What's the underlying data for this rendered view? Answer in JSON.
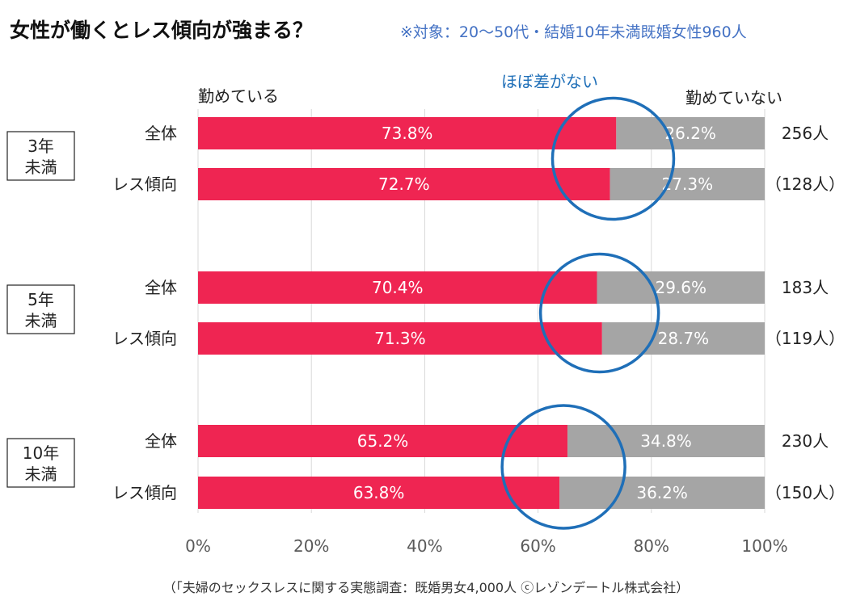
{
  "title": "女性が働くとレス傾向が強まる？",
  "subtitle": "※対象：20～50代・結婚10年未満既婚女性960人",
  "legend": {
    "left": "勤めている",
    "right": "勤めていない"
  },
  "annotation": "ほぼ差がない",
  "source": "（「夫婦のセックスレスに関する実態調査：既婚男女4,000人 ⓒレゾンデートル株式会社）",
  "colors": {
    "working": "#ef2552",
    "not_working": "#a5a5a5",
    "circle": "#1f6fb8",
    "grid": "#d9d9d9"
  },
  "chart_data": {
    "type": "bar",
    "orientation": "horizontal",
    "stacked": true,
    "percent": true,
    "xlim": [
      0,
      100
    ],
    "xticks": [
      "0%",
      "20%",
      "40%",
      "60%",
      "80%",
      "100%"
    ],
    "series": [
      {
        "name": "勤めている",
        "color": "#ef2552"
      },
      {
        "name": "勤めていない",
        "color": "#a5a5a5"
      }
    ],
    "groups": [
      {
        "label": "3年\n未満",
        "rows": [
          {
            "label": "全体",
            "working": 73.8,
            "working_label": "73.8%",
            "not_working": 26.2,
            "not_working_label": "26.2%",
            "count": "256人"
          },
          {
            "label": "レス傾向",
            "working": 72.7,
            "working_label": "72.7%",
            "not_working": 27.3,
            "not_working_label": "27.3%",
            "count": "（128人）"
          }
        ]
      },
      {
        "label": "5年\n未満",
        "rows": [
          {
            "label": "全体",
            "working": 70.4,
            "working_label": "70.4%",
            "not_working": 29.6,
            "not_working_label": "29.6%",
            "count": "183人"
          },
          {
            "label": "レス傾向",
            "working": 71.3,
            "working_label": "71.3%",
            "not_working": 28.7,
            "not_working_label": "28.7%",
            "count": "（119人）"
          }
        ]
      },
      {
        "label": "10年\n未満",
        "rows": [
          {
            "label": "全体",
            "working": 65.2,
            "working_label": "65.2%",
            "not_working": 34.8,
            "not_working_label": "34.8%",
            "count": "230人"
          },
          {
            "label": "レス傾向",
            "working": 63.8,
            "working_label": "63.8%",
            "not_working": 36.2,
            "not_working_label": "36.2%",
            "count": "（150人）"
          }
        ]
      }
    ]
  }
}
